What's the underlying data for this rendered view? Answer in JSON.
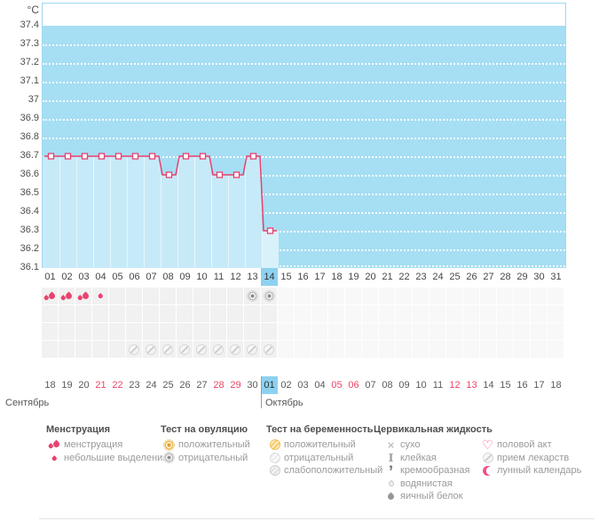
{
  "chart_data": {
    "type": "line",
    "title": "",
    "xlabel": "",
    "ylabel": "°C",
    "y_ticks": [
      "37.4",
      "37.3",
      "37.2",
      "37.1",
      "37",
      "36.9",
      "36.8",
      "36.7",
      "36.6",
      "36.5",
      "36.4",
      "36.3",
      "36.2",
      "36.1"
    ],
    "ylim": [
      36.1,
      37.4
    ],
    "y_step": 0.1,
    "grid": "dotted-white-horizontal",
    "legend_position": "none",
    "categories": [
      "01",
      "02",
      "03",
      "04",
      "05",
      "06",
      "07",
      "08",
      "09",
      "10",
      "11",
      "12",
      "13",
      "14",
      "15",
      "16",
      "17",
      "18",
      "19",
      "20",
      "21",
      "22",
      "23",
      "24",
      "25",
      "26",
      "27",
      "28",
      "29",
      "30",
      "31"
    ],
    "values": [
      36.7,
      36.7,
      36.7,
      36.7,
      36.7,
      36.7,
      36.7,
      36.6,
      36.7,
      36.7,
      36.6,
      36.6,
      36.7,
      36.3
    ],
    "current_day": "14"
  },
  "cycle_days": {
    "labels": [
      "01",
      "02",
      "03",
      "04",
      "05",
      "06",
      "07",
      "08",
      "09",
      "10",
      "11",
      "12",
      "13",
      "14",
      "15",
      "16",
      "17",
      "18",
      "19",
      "20",
      "21",
      "22",
      "23",
      "24",
      "25",
      "26",
      "27",
      "28",
      "29",
      "30",
      "31"
    ],
    "current_index": 13
  },
  "symptom_grid": {
    "rows": 4,
    "marks": [
      {
        "row": 0,
        "day": 1,
        "icon": "drops-large",
        "meaning": "менструация"
      },
      {
        "row": 0,
        "day": 2,
        "icon": "drops-large",
        "meaning": "менструация"
      },
      {
        "row": 0,
        "day": 3,
        "icon": "drops-large",
        "meaning": "менструация"
      },
      {
        "row": 0,
        "day": 4,
        "icon": "drop-small",
        "meaning": "небольшие выделения"
      },
      {
        "row": 0,
        "day": 13,
        "icon": "test-negative",
        "meaning": "тест на овуляцию: отрицательный"
      },
      {
        "row": 0,
        "day": 14,
        "icon": "test-negative",
        "meaning": "тест на овуляцию: отрицательный"
      },
      {
        "row": 3,
        "day": 6,
        "icon": "pill",
        "meaning": "прием лекарств"
      },
      {
        "row": 3,
        "day": 7,
        "icon": "pill",
        "meaning": "прием лекарств"
      },
      {
        "row": 3,
        "day": 8,
        "icon": "pill",
        "meaning": "прием лекарств"
      },
      {
        "row": 3,
        "day": 9,
        "icon": "pill",
        "meaning": "прием лекарств"
      },
      {
        "row": 3,
        "day": 10,
        "icon": "pill",
        "meaning": "прием лекарств"
      },
      {
        "row": 3,
        "day": 11,
        "icon": "pill",
        "meaning": "прием лекарств"
      },
      {
        "row": 3,
        "day": 12,
        "icon": "pill",
        "meaning": "прием лекарств"
      },
      {
        "row": 3,
        "day": 13,
        "icon": "pill",
        "meaning": "прием лекарств"
      },
      {
        "row": 3,
        "day": 14,
        "icon": "pill",
        "meaning": "прием лекарств"
      }
    ]
  },
  "calendar": {
    "month_left": "Сентябрь",
    "month_right": "Октябрь",
    "dates": [
      "18",
      "19",
      "20",
      "21",
      "22",
      "23",
      "24",
      "25",
      "26",
      "27",
      "28",
      "29",
      "30",
      "01",
      "02",
      "03",
      "04",
      "05",
      "06",
      "07",
      "08",
      "09",
      "10",
      "11",
      "12",
      "13",
      "14",
      "15",
      "16",
      "17",
      "18"
    ],
    "weekend_indices": [
      3,
      4,
      10,
      11,
      17,
      18,
      24,
      25
    ],
    "today_index": 13
  },
  "legend": {
    "columns": [
      {
        "title": "Менструация",
        "items": [
          {
            "icon": "drops-large",
            "label": "менструация"
          },
          {
            "icon": "drop-small",
            "label": "небольшие выделения"
          }
        ]
      },
      {
        "title": "Тест на овуляцию",
        "items": [
          {
            "icon": "test-positive",
            "label": "положительный"
          },
          {
            "icon": "test-negative",
            "label": "отрицательный"
          }
        ]
      },
      {
        "title": "Тест на беременность",
        "items": [
          {
            "icon": "preg-positive",
            "label": "положительный"
          },
          {
            "icon": "preg-negative",
            "label": "отрицательный"
          },
          {
            "icon": "preg-weak",
            "label": "слабоположительный"
          }
        ]
      },
      {
        "title": "Цервикальная жидкость",
        "indent": true,
        "items": [
          {
            "icon": "dry",
            "label": "сухо"
          },
          {
            "icon": "sticky",
            "label": "клейкая"
          },
          {
            "icon": "creamy",
            "label": "кремообразная"
          },
          {
            "icon": "watery",
            "label": "водянистая"
          },
          {
            "icon": "eggwhite",
            "label": "яичный белок"
          }
        ]
      },
      {
        "title": "",
        "items": [
          {
            "icon": "heart",
            "label": "половой акт"
          },
          {
            "icon": "pill",
            "label": "прием лекарств"
          },
          {
            "icon": "moon",
            "label": "лунный календарь"
          }
        ]
      }
    ]
  },
  "icon_glyphs": {
    "dry": "×",
    "sticky": "I",
    "creamy": "’",
    "heart": "♡"
  },
  "colors": {
    "plot_bg": "#a6def3",
    "column_fill": "#c7eaf8",
    "current_column_fill": "#d9f1fb",
    "chart_border": "#9fd8f0",
    "top_band": "#ffffff",
    "line": "#e7406e",
    "marker_fill": "#ffffff",
    "day_highlight": "#8dd1f0",
    "weekend_red": "#ef4467",
    "menstruation_pink": "#e8436e"
  }
}
